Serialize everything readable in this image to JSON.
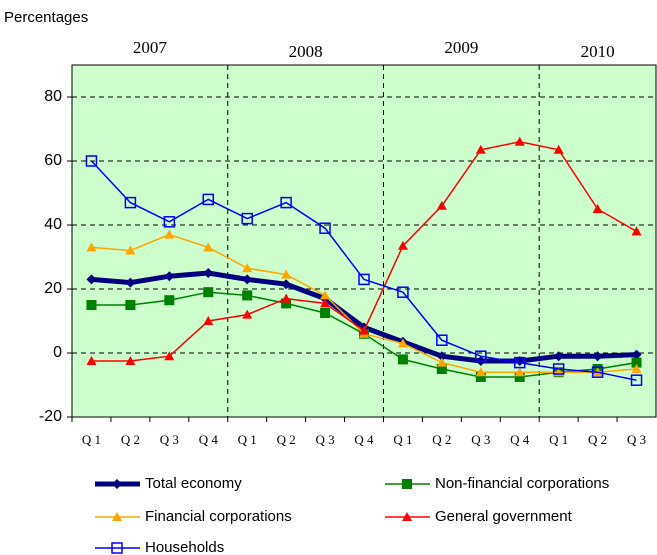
{
  "chart_data": {
    "type": "line",
    "y_label": "Percentages",
    "groups": [
      "2007",
      "2008",
      "2009",
      "2010"
    ],
    "categories": [
      "Q 1",
      "Q 2",
      "Q 3",
      "Q 4",
      "Q 1",
      "Q 2",
      "Q 3",
      "Q 4",
      "Q 1",
      "Q 2",
      "Q 3",
      "Q 4",
      "Q 1",
      "Q 2",
      "Q 3"
    ],
    "ylim": [
      -20,
      90
    ],
    "yticks": [
      -20,
      0,
      20,
      40,
      60,
      80
    ],
    "grid": true,
    "background": "#ccffcc",
    "series": [
      {
        "name": "Total economy",
        "color": "#000080",
        "marker": "diamond",
        "values": [
          23,
          22,
          24,
          25,
          23,
          21.5,
          17,
          8,
          3.5,
          -1,
          -2.5,
          -2.5,
          -1,
          -1,
          -0.5
        ]
      },
      {
        "name": "Non-financial corporations",
        "color": "#008000",
        "marker": "square",
        "values": [
          15,
          15,
          16.5,
          19,
          18,
          15.5,
          12.5,
          6,
          -2,
          -5,
          -7.5,
          -7.5,
          -6,
          -5,
          -3
        ]
      },
      {
        "name": "Financial corporations",
        "color": "#ffa500",
        "marker": "triangle",
        "values": [
          33,
          32,
          37,
          33,
          26.5,
          24.5,
          18,
          6,
          3,
          -3,
          -6,
          -6,
          -6,
          -6,
          -5
        ]
      },
      {
        "name": "General government",
        "color": "#ff0000",
        "marker": "triangle",
        "values": [
          -2.5,
          -2.5,
          -1,
          10,
          12,
          17,
          15.5,
          7,
          33.5,
          46,
          63.5,
          66,
          63.5,
          45,
          38
        ]
      },
      {
        "name": "Households",
        "color": "#0000ff",
        "marker": "open-square",
        "values": [
          60,
          47,
          41,
          48,
          42,
          47,
          39,
          23,
          19,
          4,
          -1,
          -3,
          -5,
          -6,
          -8.5
        ]
      }
    ]
  }
}
